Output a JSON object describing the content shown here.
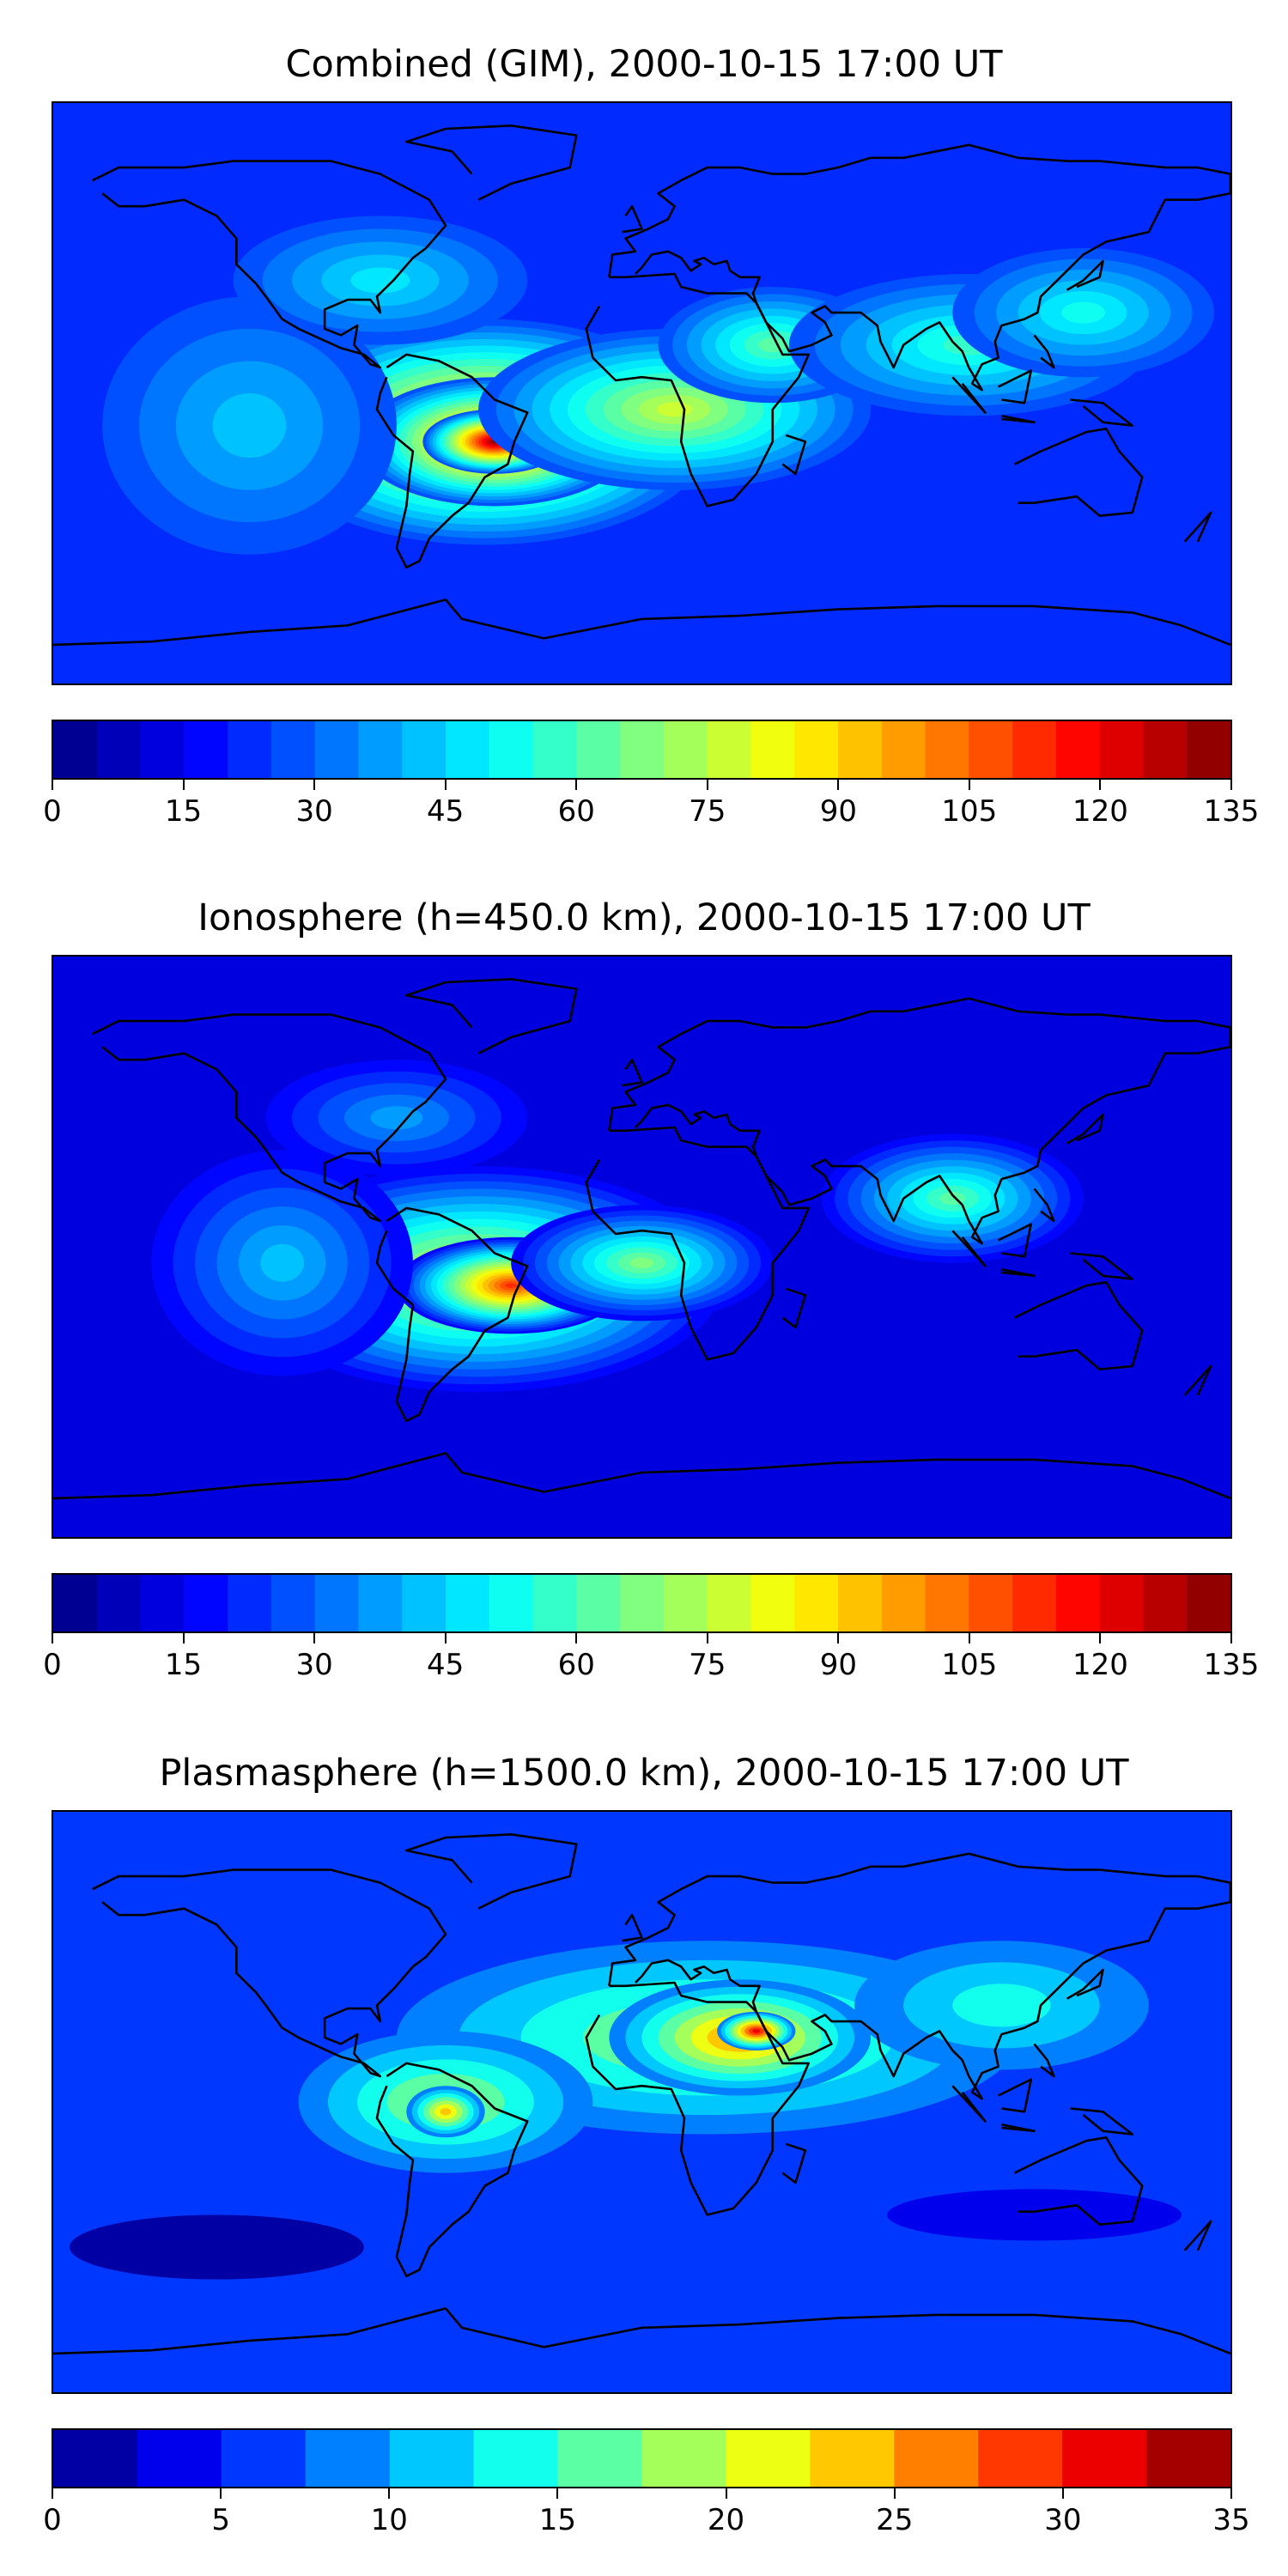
{
  "chart_data": [
    {
      "type": "heatmap",
      "title": "Combined (GIM), 2000-10-15 17:00 UT",
      "colorbar": {
        "range": [
          0,
          135
        ],
        "levels": 27,
        "ticks": [
          "0",
          "15",
          "30",
          "45",
          "60",
          "75",
          "90",
          "105",
          "120",
          "135"
        ]
      },
      "background_level": 22,
      "blobs": [
        {
          "lon": -48,
          "lat": -12,
          "rx": 70,
          "ry": 35,
          "value": 105
        },
        {
          "lon": -45,
          "lat": -15,
          "rx": 42,
          "ry": 20,
          "value": 122
        },
        {
          "lon": -45,
          "lat": -15,
          "rx": 22,
          "ry": 10,
          "value": 130
        },
        {
          "lon": 10,
          "lat": -5,
          "rx": 60,
          "ry": 25,
          "value": 75
        },
        {
          "lon": 40,
          "lat": 15,
          "rx": 35,
          "ry": 18,
          "value": 62
        },
        {
          "lon": 100,
          "lat": 15,
          "rx": 55,
          "ry": 22,
          "value": 58
        },
        {
          "lon": 135,
          "lat": 25,
          "rx": 40,
          "ry": 20,
          "value": 50
        },
        {
          "lon": -120,
          "lat": -10,
          "rx": 45,
          "ry": 40,
          "value": 40
        },
        {
          "lon": -80,
          "lat": 35,
          "rx": 45,
          "ry": 20,
          "value": 45
        }
      ],
      "axes": {
        "lon_range": [
          -180,
          180
        ],
        "lat_range": [
          -90,
          90
        ]
      }
    },
    {
      "type": "heatmap",
      "title": "Ionosphere  (h=450.0 km), 2000-10-15 17:00 UT",
      "colorbar": {
        "range": [
          0,
          135
        ],
        "levels": 27,
        "ticks": [
          "0",
          "15",
          "30",
          "45",
          "60",
          "75",
          "90",
          "105",
          "120",
          "135"
        ]
      },
      "background_level": 10,
      "blobs": [
        {
          "lon": -50,
          "lat": -10,
          "rx": 75,
          "ry": 35,
          "value": 85
        },
        {
          "lon": -40,
          "lat": -12,
          "rx": 35,
          "ry": 15,
          "value": 112
        },
        {
          "lon": 0,
          "lat": -5,
          "rx": 40,
          "ry": 18,
          "value": 65
        },
        {
          "lon": 95,
          "lat": 15,
          "rx": 40,
          "ry": 20,
          "value": 60
        },
        {
          "lon": -110,
          "lat": -5,
          "rx": 40,
          "ry": 35,
          "value": 40
        },
        {
          "lon": -75,
          "lat": 40,
          "rx": 40,
          "ry": 18,
          "value": 35
        }
      ],
      "axes": {
        "lon_range": [
          -180,
          180
        ],
        "lat_range": [
          -90,
          90
        ]
      }
    },
    {
      "type": "heatmap",
      "title": "Plasmasphere (h=1500.0 km), 2000-10-15 17:00 UT",
      "colorbar": {
        "range": [
          0,
          35
        ],
        "levels": 14,
        "ticks": [
          "0",
          "5",
          "10",
          "15",
          "20",
          "25",
          "30",
          "35"
        ]
      },
      "background_level": 7,
      "blobs": [
        {
          "lon": 20,
          "lat": 20,
          "rx": 95,
          "ry": 30,
          "value": 20
        },
        {
          "lon": 30,
          "lat": 20,
          "rx": 40,
          "ry": 18,
          "value": 26
        },
        {
          "lon": 35,
          "lat": 22,
          "rx": 12,
          "ry": 6,
          "value": 31
        },
        {
          "lon": -60,
          "lat": 0,
          "rx": 45,
          "ry": 22,
          "value": 19
        },
        {
          "lon": -60,
          "lat": -3,
          "rx": 12,
          "ry": 8,
          "value": 24
        },
        {
          "lon": 110,
          "lat": 30,
          "rx": 45,
          "ry": 20,
          "value": 14
        },
        {
          "lon": -130,
          "lat": -45,
          "rx": 45,
          "ry": 10,
          "value": 2
        },
        {
          "lon": 120,
          "lat": -35,
          "rx": 45,
          "ry": 8,
          "value": 3
        }
      ],
      "axes": {
        "lon_range": [
          -180,
          180
        ],
        "lat_range": [
          -90,
          90
        ]
      }
    }
  ]
}
